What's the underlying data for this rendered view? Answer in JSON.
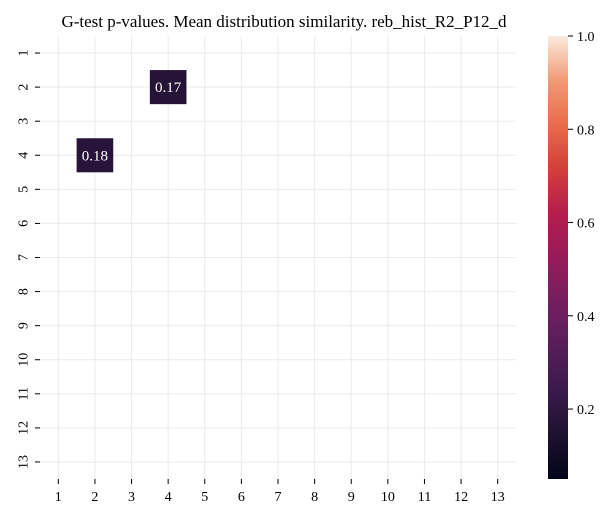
{
  "chart_data": {
    "type": "heatmap",
    "title": "G-test p-values. Mean distribution similarity. reb_hist_R2_P12_d",
    "x_categories": [
      "1",
      "2",
      "3",
      "4",
      "5",
      "6",
      "7",
      "8",
      "9",
      "10",
      "11",
      "12",
      "13"
    ],
    "y_categories": [
      "1",
      "2",
      "3",
      "4",
      "5",
      "6",
      "7",
      "8",
      "9",
      "10",
      "11",
      "12",
      "13"
    ],
    "cells": [
      {
        "x": "4",
        "y": "2",
        "value": 0.17,
        "label": "0.17"
      },
      {
        "x": "2",
        "y": "4",
        "value": 0.18,
        "label": "0.18"
      }
    ],
    "colorbar": {
      "vmin": 0.05,
      "vmax": 1.0,
      "ticks": [
        "0.2",
        "0.4",
        "0.6",
        "0.8",
        "1.0"
      ],
      "tick_values": [
        0.2,
        0.4,
        0.6,
        0.8,
        1.0
      ],
      "colormap": "rocket"
    },
    "grid": true,
    "cell_text_color": "#ffffff",
    "grid_color": "#ebebeb"
  }
}
